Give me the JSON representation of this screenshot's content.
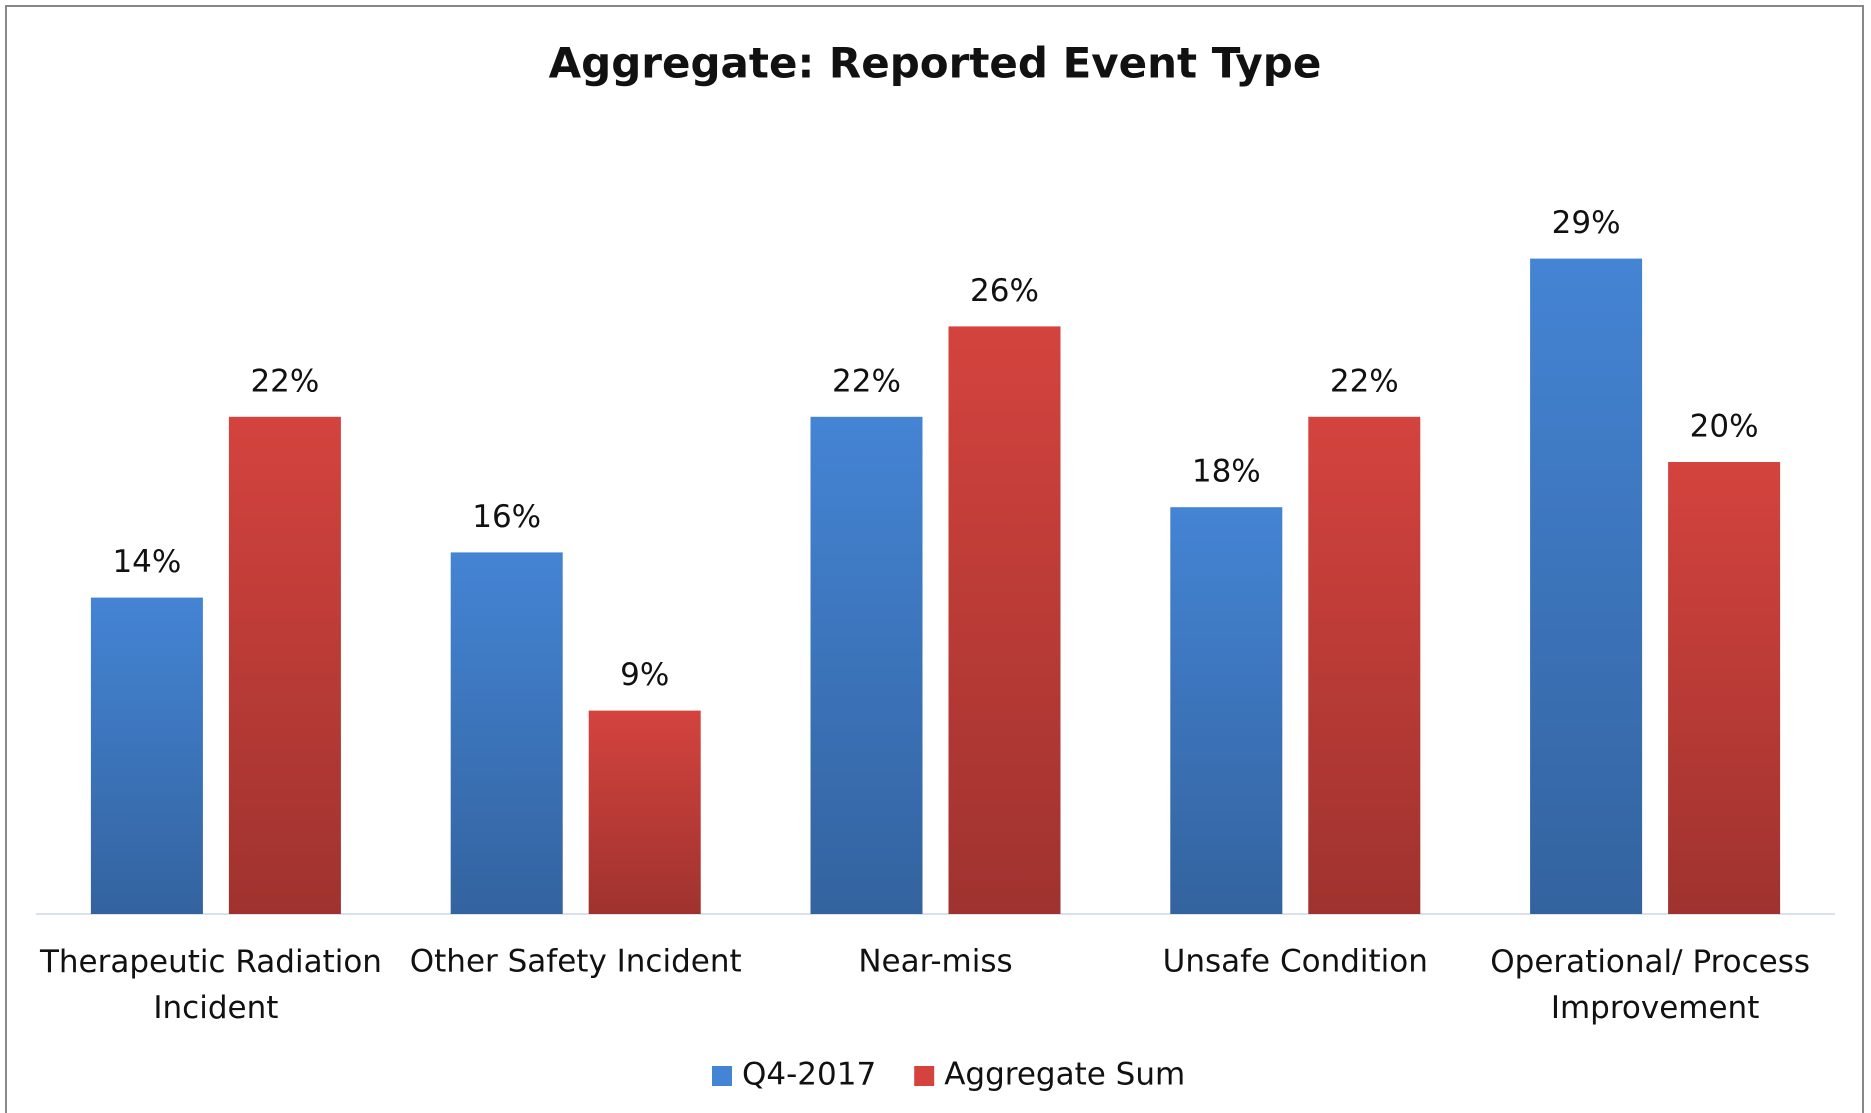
{
  "chart_data": {
    "type": "bar",
    "title": "Aggregate: Reported Event Type",
    "categories": [
      "Therapeutic Radiation Incident",
      "Other Safety Incident",
      "Near-miss",
      "Unsafe Condition",
      "Operational/ Process Improvement"
    ],
    "series": [
      {
        "name": "Q4-2017",
        "color": "#4484d4",
        "values": [
          14,
          16,
          22,
          18,
          29
        ],
        "value_labels": [
          "14%",
          "16%",
          "22%",
          "18%",
          "29%"
        ]
      },
      {
        "name": "Aggregate Sum",
        "color": "#d4433e",
        "values": [
          22,
          9,
          26,
          22,
          20
        ],
        "value_labels": [
          "22%",
          "9%",
          "26%",
          "22%",
          "20%"
        ]
      }
    ],
    "legend": "bottom"
  }
}
